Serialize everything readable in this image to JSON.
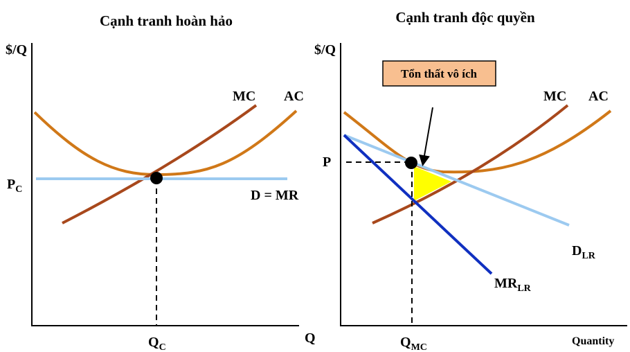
{
  "left": {
    "title": "Cạnh tranh hoàn hảo",
    "y_label": "$/Q",
    "mc": "MC",
    "ac": "AC",
    "price": {
      "main": "P",
      "sub": "C"
    },
    "demand": "D = MR",
    "quantity": {
      "main": "Q",
      "sub": "C"
    },
    "x_label": "Q"
  },
  "right": {
    "title": "Cạnh tranh độc quyền",
    "y_label": "$/Q",
    "mc": "MC",
    "ac": "AC",
    "price": "P",
    "deadweight": "Tổn thất vô ích",
    "demand": {
      "main": "D",
      "sub": "LR"
    },
    "mr": {
      "main": "MR",
      "sub": "LR"
    },
    "quantity": {
      "main": "Q",
      "sub": "MC"
    },
    "x_label": "Quantity"
  }
}
